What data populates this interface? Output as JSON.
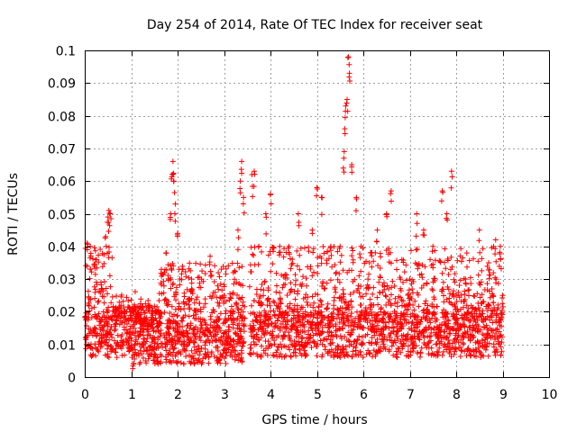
{
  "chart_data": {
    "type": "scatter",
    "title": "Day 254 of 2014, Rate Of TEC Index for receiver seat",
    "xlabel": "GPS time / hours",
    "ylabel": "ROTI / TECUs",
    "xlim": [
      0,
      10
    ],
    "ylim": [
      0,
      0.1
    ],
    "xticks": [
      "0",
      "1",
      "2",
      "3",
      "4",
      "5",
      "6",
      "7",
      "8",
      "9",
      "10"
    ],
    "yticks": [
      "0",
      "0.01",
      "0.02",
      "0.03",
      "0.04",
      "0.05",
      "0.06",
      "0.07",
      "0.08",
      "0.09",
      "0.1"
    ],
    "grid": true,
    "marker": "+",
    "color": "#ff0000",
    "data_range_hours": [
      0,
      9
    ],
    "series": [
      {
        "name": "ROTI",
        "points_sampled": [
          [
            0.05,
            0.041
          ],
          [
            0.12,
            0.04
          ],
          [
            0.25,
            0.036
          ],
          [
            0.35,
            0.029
          ],
          [
            0.45,
            0.043
          ],
          [
            0.5,
            0.049
          ],
          [
            0.52,
            0.051
          ],
          [
            0.55,
            0.05
          ],
          [
            0.7,
            0.021
          ],
          [
            0.9,
            0.02
          ],
          [
            1.0,
            0.012
          ],
          [
            1.05,
            0.004
          ],
          [
            1.2,
            0.015
          ],
          [
            1.4,
            0.022
          ],
          [
            1.5,
            0.012
          ],
          [
            1.65,
            0.033
          ],
          [
            1.75,
            0.038
          ],
          [
            1.85,
            0.05
          ],
          [
            1.88,
            0.062
          ],
          [
            1.9,
            0.066
          ],
          [
            1.92,
            0.06
          ],
          [
            1.95,
            0.053
          ],
          [
            2.0,
            0.044
          ],
          [
            2.1,
            0.033
          ],
          [
            2.3,
            0.03
          ],
          [
            2.5,
            0.02
          ],
          [
            2.7,
            0.037
          ],
          [
            2.9,
            0.015
          ],
          [
            3.0,
            0.025
          ],
          [
            3.2,
            0.032
          ],
          [
            3.3,
            0.045
          ],
          [
            3.35,
            0.06
          ],
          [
            3.38,
            0.066
          ],
          [
            3.42,
            0.055
          ],
          [
            3.6,
            0.062
          ],
          [
            3.65,
            0.063
          ],
          [
            3.75,
            0.04
          ],
          [
            3.9,
            0.05
          ],
          [
            4.0,
            0.056
          ],
          [
            4.2,
            0.04
          ],
          [
            4.4,
            0.04
          ],
          [
            4.6,
            0.05
          ],
          [
            4.9,
            0.045
          ],
          [
            5.0,
            0.058
          ],
          [
            5.1,
            0.055
          ],
          [
            5.3,
            0.04
          ],
          [
            5.5,
            0.04
          ],
          [
            5.58,
            0.067
          ],
          [
            5.6,
            0.076
          ],
          [
            5.62,
            0.083
          ],
          [
            5.65,
            0.085
          ],
          [
            5.68,
            0.098
          ],
          [
            5.7,
            0.093
          ],
          [
            5.75,
            0.065
          ],
          [
            5.85,
            0.055
          ],
          [
            5.95,
            0.04
          ],
          [
            6.1,
            0.03
          ],
          [
            6.3,
            0.045
          ],
          [
            6.5,
            0.05
          ],
          [
            6.6,
            0.057
          ],
          [
            6.8,
            0.03
          ],
          [
            7.0,
            0.03
          ],
          [
            7.15,
            0.05
          ],
          [
            7.3,
            0.045
          ],
          [
            7.5,
            0.04
          ],
          [
            7.7,
            0.057
          ],
          [
            7.8,
            0.05
          ],
          [
            7.9,
            0.063
          ],
          [
            8.0,
            0.025
          ],
          [
            8.2,
            0.03
          ],
          [
            8.5,
            0.045
          ],
          [
            8.7,
            0.035
          ],
          [
            8.85,
            0.042
          ],
          [
            8.95,
            0.04
          ],
          [
            9.0,
            0.025
          ]
        ]
      }
    ],
    "density_note": "Thousands of points, dense band between about 0.005 and 0.025 across 0-9 hours"
  }
}
